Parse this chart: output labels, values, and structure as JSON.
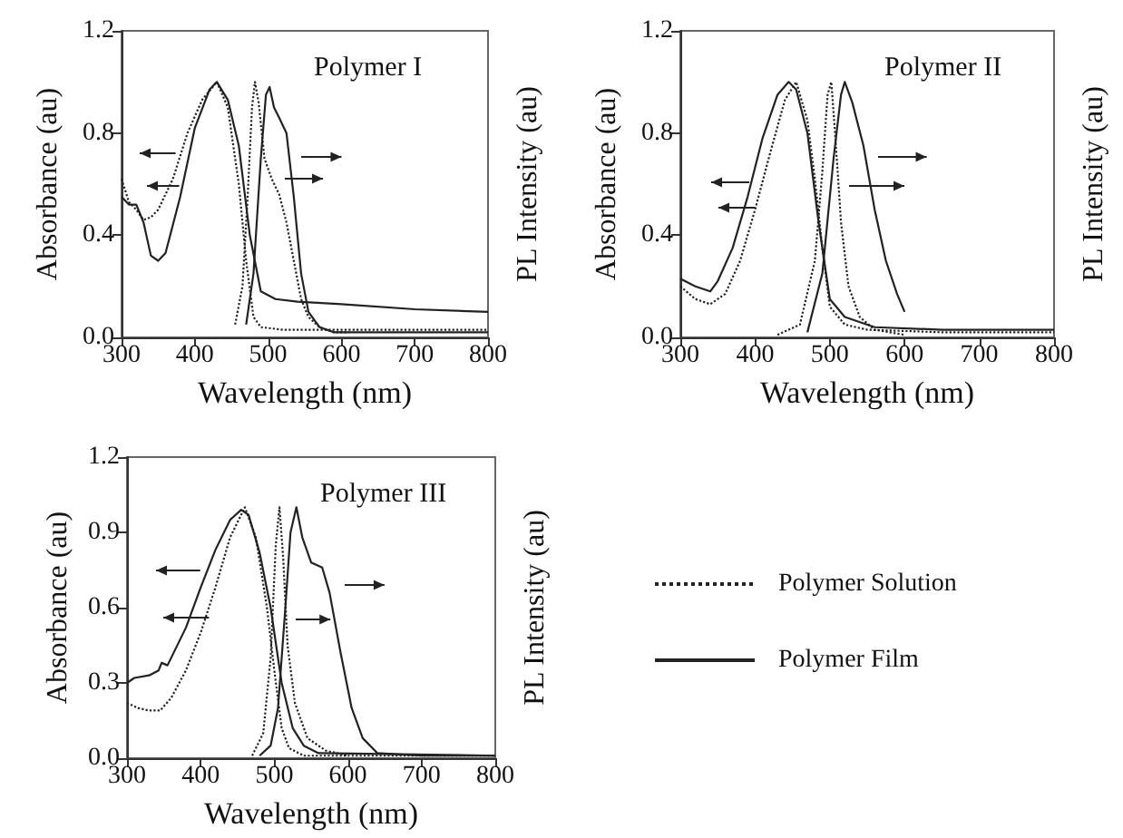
{
  "chart_data": [
    {
      "type": "line",
      "title": "Polymer I",
      "xlabel": "Wavelength (nm)",
      "ylabel": "Absorbance (au)",
      "y2label": "PL Intensity (au)",
      "xlim": [
        300,
        800
      ],
      "ylim": [
        0,
        1.2
      ],
      "xticks": [
        300,
        400,
        500,
        600,
        700,
        800
      ],
      "yticks": [
        {
          "value": 0,
          "label": "0.0"
        },
        {
          "value": 0.4,
          "label": "0.4"
        },
        {
          "value": 0.8,
          "label": "0.8"
        },
        {
          "value": 1.2,
          "label": "1.2"
        }
      ],
      "marker": "none",
      "grid": false,
      "legend": false,
      "series": [
        {
          "color": "#222222",
          "line_style": "dotted",
          "x": [
            300,
            310,
            320,
            330,
            340,
            350,
            370,
            390,
            410,
            430,
            445,
            460,
            470,
            480,
            490,
            520,
            600,
            700,
            800
          ],
          "values": [
            0.62,
            0.53,
            0.5,
            0.46,
            0.47,
            0.5,
            0.62,
            0.8,
            0.93,
            1.0,
            0.9,
            0.6,
            0.3,
            0.08,
            0.04,
            0.03,
            0.03,
            0.03,
            0.03
          ]
        },
        {
          "color": "#222222",
          "line_style": "solid",
          "x": [
            300,
            310,
            320,
            330,
            340,
            350,
            360,
            380,
            400,
            420,
            430,
            445,
            460,
            475,
            490,
            510,
            540,
            600,
            700,
            800
          ],
          "values": [
            0.55,
            0.52,
            0.52,
            0.45,
            0.32,
            0.3,
            0.33,
            0.55,
            0.82,
            0.97,
            1.0,
            0.93,
            0.75,
            0.4,
            0.18,
            0.15,
            0.14,
            0.13,
            0.11,
            0.1
          ]
        },
        {
          "color": "#222222",
          "line_style": "dotted",
          "x": [
            455,
            465,
            472,
            478,
            482,
            487,
            495,
            505,
            515,
            525,
            535,
            545,
            555,
            570,
            590,
            610
          ],
          "values": [
            0.05,
            0.2,
            0.55,
            0.9,
            1.0,
            0.92,
            0.7,
            0.62,
            0.56,
            0.45,
            0.3,
            0.15,
            0.08,
            0.04,
            0.02,
            0.02
          ]
        },
        {
          "color": "#222222",
          "line_style": "solid",
          "x": [
            470,
            480,
            490,
            497,
            502,
            508,
            515,
            525,
            535,
            545,
            555,
            570,
            590,
            800
          ],
          "values": [
            0.05,
            0.25,
            0.7,
            0.95,
            0.98,
            0.9,
            0.86,
            0.8,
            0.55,
            0.25,
            0.1,
            0.04,
            0.02,
            0.02
          ]
        }
      ]
    },
    {
      "type": "line",
      "title": "Polymer II",
      "xlabel": "Wavelength (nm)",
      "ylabel": "Absorbance (au)",
      "y2label": "PL Intensity (au)",
      "xlim": [
        300,
        800
      ],
      "ylim": [
        0,
        1.2
      ],
      "xticks": [
        300,
        400,
        500,
        600,
        700,
        800
      ],
      "yticks": [
        {
          "value": 0,
          "label": "0.0"
        },
        {
          "value": 0.4,
          "label": "0.4"
        },
        {
          "value": 0.8,
          "label": "0.8"
        },
        {
          "value": 1.2,
          "label": "1.2"
        }
      ],
      "marker": "none",
      "grid": false,
      "legend": false,
      "series": [
        {
          "color": "#222222",
          "line_style": "dotted",
          "x": [
            300,
            320,
            340,
            360,
            380,
            400,
            420,
            440,
            455,
            470,
            480,
            490,
            500,
            520,
            550,
            650,
            800
          ],
          "values": [
            0.2,
            0.15,
            0.13,
            0.17,
            0.3,
            0.5,
            0.72,
            0.93,
            1.0,
            0.85,
            0.62,
            0.35,
            0.12,
            0.05,
            0.03,
            0.02,
            0.02
          ]
        },
        {
          "color": "#222222",
          "line_style": "solid",
          "x": [
            300,
            320,
            340,
            350,
            370,
            390,
            410,
            430,
            445,
            455,
            470,
            485,
            500,
            520,
            560,
            650,
            800
          ],
          "values": [
            0.23,
            0.2,
            0.18,
            0.22,
            0.35,
            0.55,
            0.78,
            0.95,
            1.0,
            0.97,
            0.8,
            0.45,
            0.15,
            0.08,
            0.04,
            0.03,
            0.03
          ]
        },
        {
          "color": "#222222",
          "line_style": "dotted",
          "x": [
            430,
            460,
            480,
            490,
            497,
            502,
            507,
            515,
            525,
            540,
            560,
            600
          ],
          "values": [
            0.01,
            0.05,
            0.3,
            0.65,
            0.95,
            1.0,
            0.8,
            0.45,
            0.2,
            0.08,
            0.03,
            0.01
          ]
        },
        {
          "color": "#222222",
          "line_style": "solid",
          "x": [
            470,
            490,
            505,
            515,
            520,
            530,
            545,
            560,
            575,
            590,
            600
          ],
          "values": [
            0.02,
            0.25,
            0.7,
            0.95,
            1.0,
            0.92,
            0.75,
            0.5,
            0.3,
            0.17,
            0.1
          ]
        }
      ]
    },
    {
      "type": "line",
      "title": "Polymer III",
      "xlabel": "Wavelength (nm)",
      "ylabel": "Absorbance (au)",
      "y2label": "PL Intensity (au)",
      "xlim": [
        300,
        800
      ],
      "ylim": [
        0,
        1.2
      ],
      "xticks": [
        300,
        400,
        500,
        600,
        700,
        800
      ],
      "yticks": [
        {
          "value": 0,
          "label": "0.0"
        },
        {
          "value": 0.3,
          "label": "0.3"
        },
        {
          "value": 0.6,
          "label": "0.6"
        },
        {
          "value": 0.9,
          "label": "0.9"
        },
        {
          "value": 1.2,
          "label": "1.2"
        }
      ],
      "marker": "none",
      "grid": false,
      "legend": "right",
      "series": [
        {
          "name": "Polymer Solution",
          "color": "#222222",
          "line_style": "dotted",
          "x": [
            300,
            315,
            330,
            345,
            360,
            380,
            400,
            420,
            440,
            460,
            475,
            490,
            500,
            510,
            520,
            540,
            600,
            800
          ],
          "values": [
            0.22,
            0.2,
            0.19,
            0.19,
            0.24,
            0.35,
            0.5,
            0.68,
            0.88,
            1.0,
            0.88,
            0.6,
            0.35,
            0.12,
            0.04,
            0.01,
            0.01,
            0.01
          ]
        },
        {
          "name": "Polymer Film",
          "color": "#222222",
          "line_style": "solid",
          "x": [
            300,
            310,
            330,
            343,
            347,
            355,
            380,
            400,
            420,
            440,
            455,
            465,
            480,
            495,
            510,
            525,
            540,
            560,
            800
          ],
          "values": [
            0.3,
            0.32,
            0.33,
            0.35,
            0.38,
            0.37,
            0.52,
            0.68,
            0.83,
            0.95,
            0.99,
            0.97,
            0.82,
            0.6,
            0.3,
            0.12,
            0.05,
            0.02,
            0.01
          ]
        },
        {
          "color": "#222222",
          "line_style": "dotted",
          "x": [
            470,
            485,
            495,
            502,
            507,
            512,
            518,
            528,
            545,
            570,
            600
          ],
          "values": [
            0.01,
            0.1,
            0.4,
            0.85,
            1.0,
            0.8,
            0.45,
            0.22,
            0.08,
            0.03,
            0.01
          ]
        },
        {
          "color": "#222222",
          "line_style": "solid",
          "x": [
            480,
            495,
            505,
            515,
            522,
            530,
            538,
            550,
            565,
            575,
            590,
            605,
            620,
            640,
            700,
            800
          ],
          "values": [
            0.01,
            0.05,
            0.2,
            0.6,
            0.9,
            1.0,
            0.88,
            0.78,
            0.76,
            0.66,
            0.42,
            0.2,
            0.08,
            0.02,
            0.01,
            0.01
          ]
        }
      ]
    }
  ]
}
